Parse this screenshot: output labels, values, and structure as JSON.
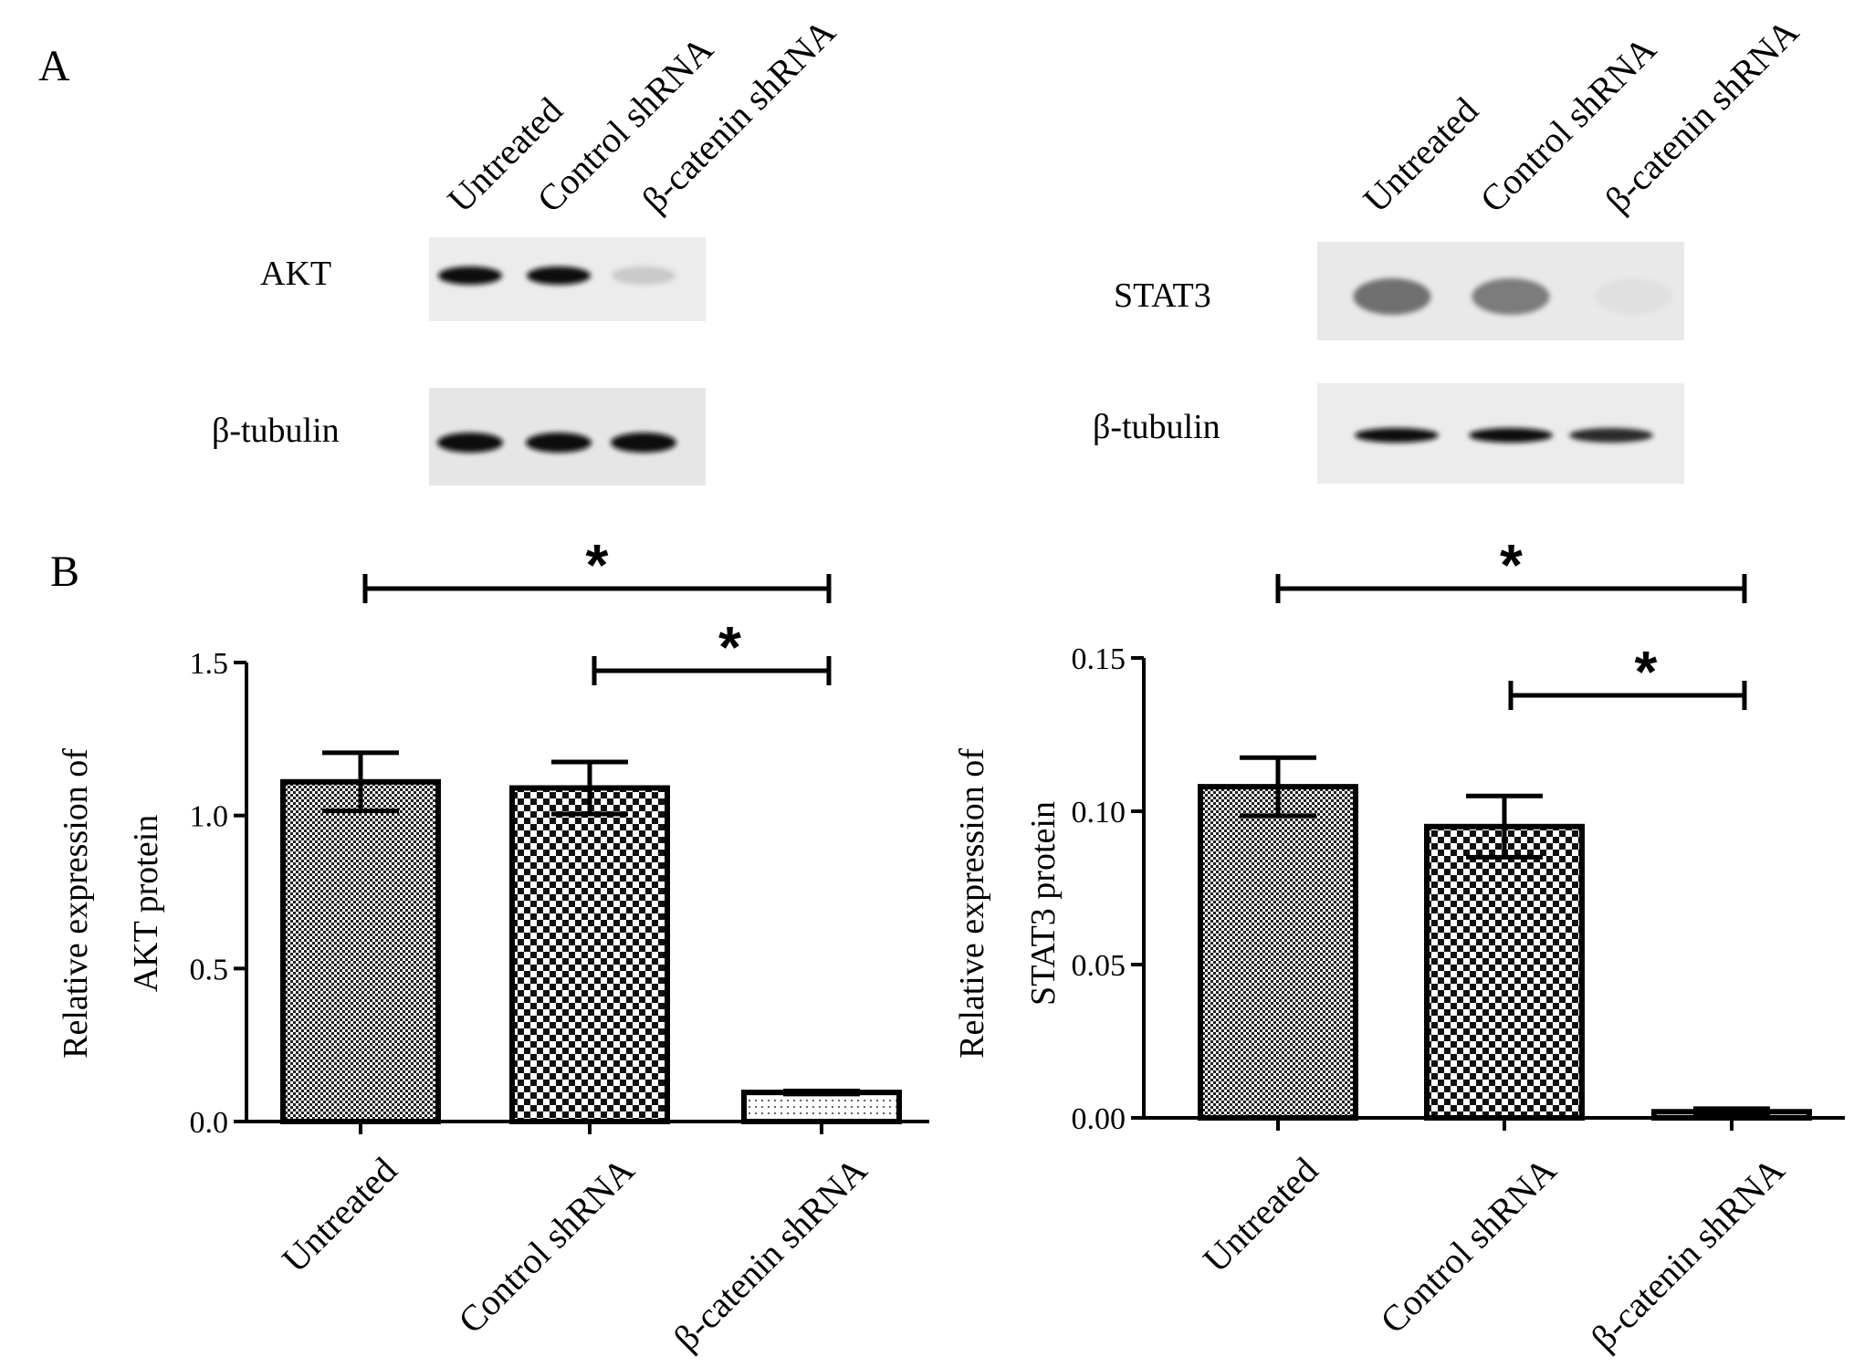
{
  "panels": {
    "a": {
      "letter": "A",
      "lanes": [
        "Untreated",
        "Control shRNA",
        "β-catenin shRNA"
      ],
      "blots": [
        {
          "target": "AKT",
          "control": "β-tubulin",
          "target_intensity": [
            1.0,
            1.0,
            0.15
          ],
          "control_intensity": [
            1.0,
            1.0,
            1.0
          ]
        },
        {
          "target": "STAT3",
          "control": "β-tubulin",
          "target_intensity": [
            0.55,
            0.5,
            0.05
          ],
          "control_intensity": [
            1.0,
            1.0,
            0.85
          ]
        }
      ]
    },
    "b": {
      "letter": "B"
    }
  },
  "chart_data": [
    {
      "type": "bar",
      "categories": [
        "Untreated",
        "Control shRNA",
        "β-catenin shRNA"
      ],
      "values": [
        1.11,
        1.09,
        0.095
      ],
      "errors": [
        0.095,
        0.085,
        0.005
      ],
      "patterns": [
        "fine-check",
        "checker",
        "dots"
      ],
      "ylabel_line1": "Relative expression of",
      "ylabel_line2": "AKT protein",
      "ylim": [
        0,
        1.5
      ],
      "yticks": [
        0.0,
        0.5,
        1.0,
        1.5
      ],
      "ytick_labels": [
        "0.0",
        "0.5",
        "1.0",
        "1.5"
      ],
      "significance": [
        {
          "from": 0,
          "to": 2,
          "label": "*"
        },
        {
          "from": 1,
          "to": 2,
          "label": "*"
        }
      ]
    },
    {
      "type": "bar",
      "categories": [
        "Untreated",
        "Control shRNA",
        "β-catenin shRNA"
      ],
      "values": [
        0.108,
        0.095,
        0.002
      ],
      "errors": [
        0.0095,
        0.01,
        0.001
      ],
      "patterns": [
        "fine-check",
        "checker",
        "white"
      ],
      "ylabel_line1": "Relative expression of",
      "ylabel_line2": "STAT3 protein",
      "ylim": [
        0,
        0.15
      ],
      "yticks": [
        0.0,
        0.05,
        0.1,
        0.15
      ],
      "ytick_labels": [
        "0.00",
        "0.05",
        "0.10",
        "0.15"
      ],
      "significance": [
        {
          "from": 0,
          "to": 2,
          "label": "*"
        },
        {
          "from": 1,
          "to": 2,
          "label": "*"
        }
      ]
    }
  ]
}
